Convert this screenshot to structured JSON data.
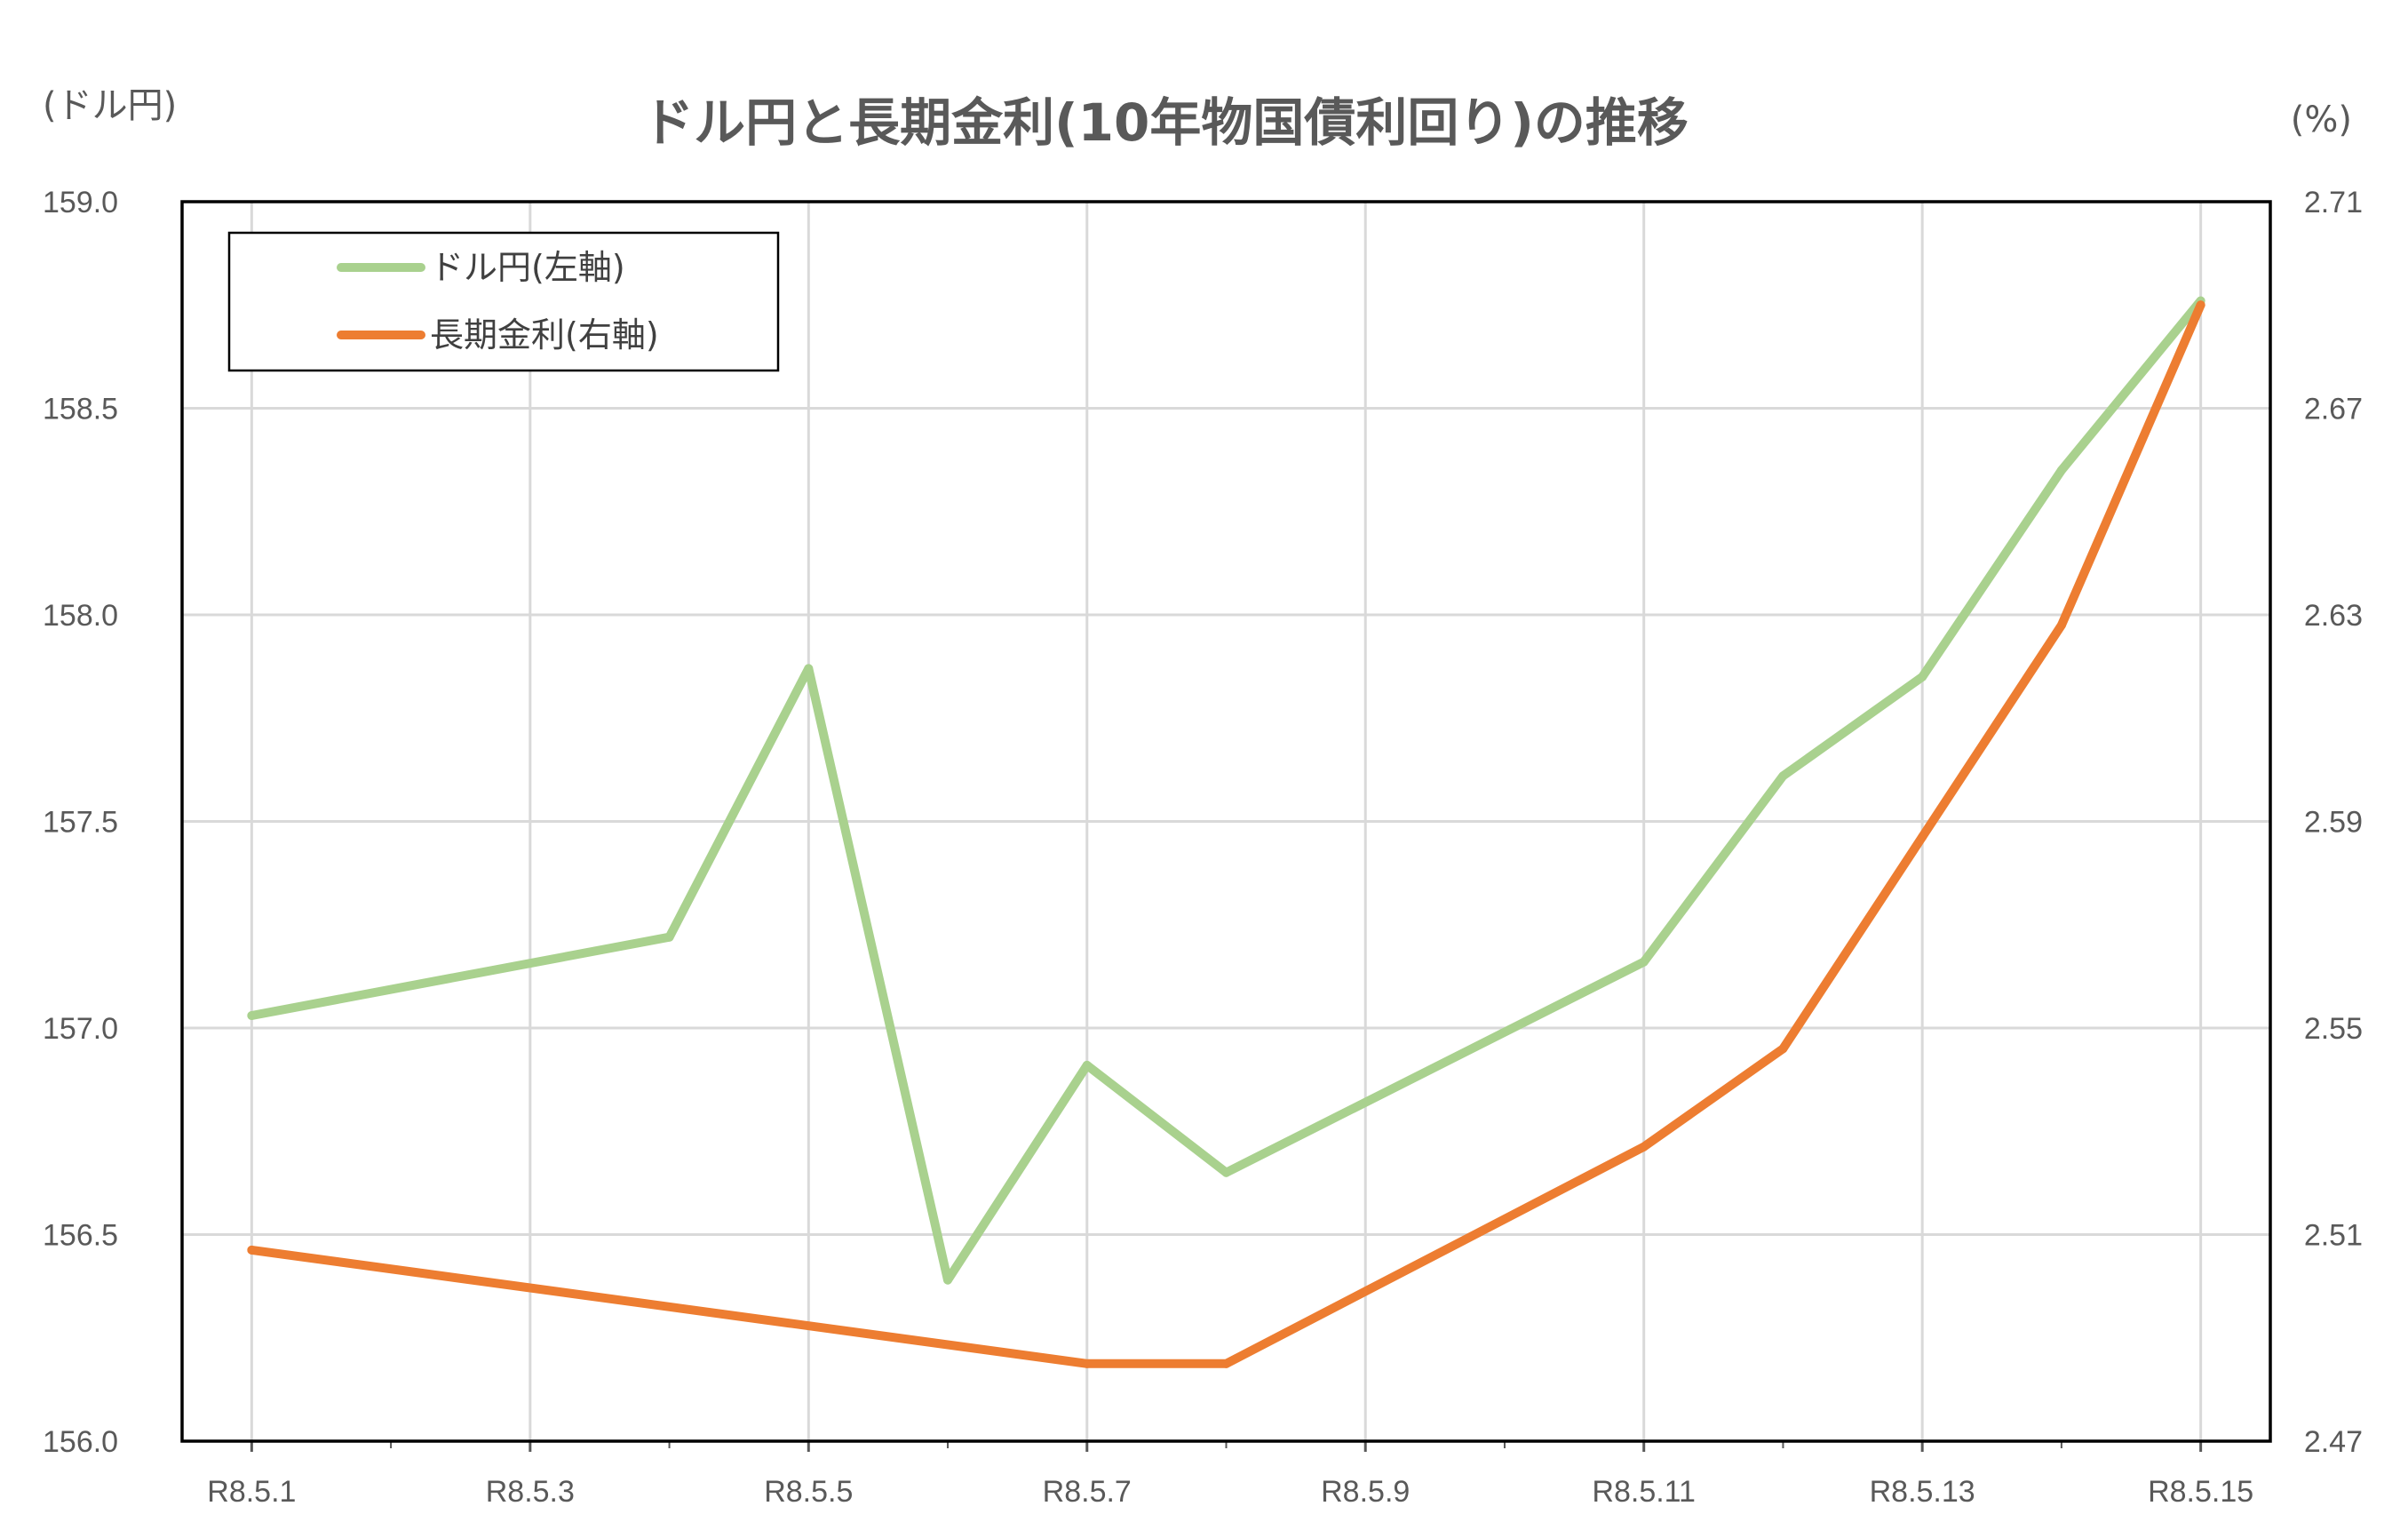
{
  "chart_data": {
    "type": "line",
    "title": "ドル円と長期金利(10年物国債利回り)の推移",
    "left_unit": "(ドル円)",
    "right_unit": "(%)",
    "x_tick_labels": [
      "R8.5.1",
      "R8.5.3",
      "R8.5.5",
      "R8.5.7",
      "R8.5.9",
      "R8.5.11",
      "R8.5.13",
      "R8.5.15"
    ],
    "x_tick_days": [
      1,
      3,
      5,
      7,
      9,
      11,
      13,
      15
    ],
    "x_range": [
      0.5,
      15.5
    ],
    "y_left": {
      "min": 156.0,
      "max": 159.0,
      "ticks": [
        "156.0",
        "156.5",
        "157.0",
        "157.5",
        "158.0",
        "158.5",
        "159.0"
      ]
    },
    "y_right": {
      "min": 2.47,
      "max": 2.71,
      "ticks": [
        "2.47",
        "2.51",
        "2.55",
        "2.59",
        "2.63",
        "2.67",
        "2.71"
      ]
    },
    "grid": true,
    "legend_position": "top-left",
    "series": [
      {
        "name": "ドル円(左軸)",
        "axis": "left",
        "color": "#a9d18e",
        "x": [
          1,
          4,
          5,
          6,
          7,
          8,
          11,
          12,
          13,
          14,
          15
        ],
        "values": [
          157.03,
          157.22,
          157.87,
          156.39,
          156.91,
          156.65,
          157.16,
          157.61,
          157.85,
          158.35,
          158.76
        ]
      },
      {
        "name": "長期金利(右軸)",
        "axis": "right",
        "color": "#ed7d31",
        "x": [
          1,
          7,
          8,
          11,
          12,
          13,
          14,
          15
        ],
        "values": [
          2.507,
          2.485,
          2.485,
          2.527,
          2.546,
          2.587,
          2.628,
          2.69
        ]
      }
    ]
  }
}
